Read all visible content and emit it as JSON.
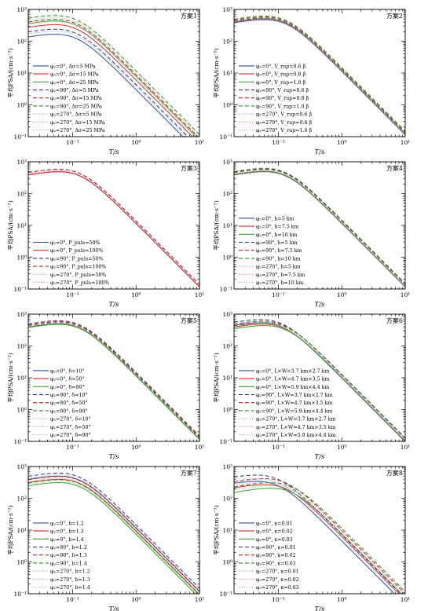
{
  "figure": {
    "ylabel": "平均PSA/(cm·s⁻²)",
    "xlabel": "T/s",
    "x_ticks": [
      "10⁻¹",
      "10⁰",
      "10¹"
    ],
    "y_ticks": [
      "10⁻¹",
      "10⁰",
      "10¹",
      "10²",
      "10³"
    ]
  },
  "colors": {
    "blue": "#2b4fa8",
    "red": "#e0272a",
    "green": "#3ea435",
    "darkblue": "#1f3a8a",
    "darkred": "#c42020",
    "darkgreen": "#2e8a27"
  },
  "chart_data": [
    {
      "type": "line",
      "scale": "loglog",
      "title": "方案1",
      "xlabel": "T/s",
      "ylabel": "平均PSA/(cm·s⁻²)",
      "xlim": [
        0.02,
        10
      ],
      "ylim": [
        0.1,
        1000
      ],
      "legend": "bottom-left",
      "series": [
        {
          "name": "φ₂=0°, Δσ=5 MPa",
          "color": "#2b4fa8",
          "dash": "solid",
          "peak": 160,
          "tp": 0.07
        },
        {
          "name": "φ₂=0°, Δσ=15 MPa",
          "color": "#e0272a",
          "dash": "solid",
          "peak": 320,
          "tp": 0.07
        },
        {
          "name": "φ₂=0°, Δσ=25 MPa",
          "color": "#3ea435",
          "dash": "solid",
          "peak": 420,
          "tp": 0.07
        },
        {
          "name": "φ₂=90°, Δσ=5 MPa",
          "color": "#1f3a8a",
          "dash": "dashed",
          "peak": 230,
          "tp": 0.07
        },
        {
          "name": "φ₂=90°, Δσ=15 MPa",
          "color": "#c42020",
          "dash": "dashed",
          "peak": 470,
          "tp": 0.07
        },
        {
          "name": "φ₂=90°, Δσ=25 MPa",
          "color": "#2e8a27",
          "dash": "dashed",
          "peak": 620,
          "tp": 0.07
        },
        {
          "name": "φ₂=270°, Δσ=5 MPa",
          "color": "#8fa3d6",
          "dash": "dotted",
          "peak": 200,
          "tp": 0.07
        },
        {
          "name": "φ₂=270°, Δσ=15 MPa",
          "color": "#f08a8a",
          "dash": "dotted",
          "peak": 400,
          "tp": 0.07
        },
        {
          "name": "φ₂=270°, Δσ=25 MPa",
          "color": "#8fce89",
          "dash": "dotted",
          "peak": 530,
          "tp": 0.07
        }
      ]
    },
    {
      "type": "line",
      "scale": "loglog",
      "title": "方案2",
      "xlabel": "T/s",
      "ylabel": "平均PSA/(cm·s⁻²)",
      "xlim": [
        0.02,
        10
      ],
      "ylim": [
        0.1,
        1000
      ],
      "legend": "bottom-left",
      "series": [
        {
          "name": "φ₂=0°, V_rup=0.6 β",
          "color": "#2b4fa8",
          "dash": "solid",
          "peak": 460,
          "tp": 0.08
        },
        {
          "name": "φ₂=0°, V_rup=0.8 β",
          "color": "#e0272a",
          "dash": "solid",
          "peak": 480,
          "tp": 0.08
        },
        {
          "name": "φ₂=0°, V_rup=1.0 β",
          "color": "#3ea435",
          "dash": "solid",
          "peak": 500,
          "tp": 0.08
        },
        {
          "name": "φ₂=90°, V_rup=0.6 β",
          "color": "#1f3a8a",
          "dash": "dashed",
          "peak": 520,
          "tp": 0.08
        },
        {
          "name": "φ₂=90°, V_rup=0.8 β",
          "color": "#c42020",
          "dash": "dashed",
          "peak": 560,
          "tp": 0.08
        },
        {
          "name": "φ₂=90°, V_rup=1.0 β",
          "color": "#2e8a27",
          "dash": "dashed",
          "peak": 600,
          "tp": 0.08
        },
        {
          "name": "φ₂=270°, V_rup=0.6 β",
          "color": "#8fa3d6",
          "dash": "dotted",
          "peak": 470,
          "tp": 0.08
        },
        {
          "name": "φ₂=270°, V_rup=0.8 β",
          "color": "#f08a8a",
          "dash": "dotted",
          "peak": 500,
          "tp": 0.08
        },
        {
          "name": "φ₂=270°, V_rup=1.0 β",
          "color": "#8fce89",
          "dash": "dotted",
          "peak": 540,
          "tp": 0.08
        }
      ]
    },
    {
      "type": "line",
      "scale": "loglog",
      "title": "方案3",
      "xlabel": "T/s",
      "ylabel": "平均PSA/(cm·s⁻²)",
      "xlim": [
        0.02,
        10
      ],
      "ylim": [
        0.1,
        1000
      ],
      "legend": "bottom-left",
      "series": [
        {
          "name": "φ₂=0°, P_puls=50%",
          "color": "#2b4fa8",
          "dash": "solid",
          "peak": 470,
          "tp": 0.08
        },
        {
          "name": "φ₂=0°, P_puls=100%",
          "color": "#e0272a",
          "dash": "solid",
          "peak": 470,
          "tp": 0.08
        },
        {
          "name": "φ₂=90°, P_puls=50%",
          "color": "#1f3a8a",
          "dash": "dashed",
          "peak": 560,
          "tp": 0.08
        },
        {
          "name": "φ₂=90°, P_puls=100%",
          "color": "#c42020",
          "dash": "dashed",
          "peak": 560,
          "tp": 0.08
        },
        {
          "name": "φ₂=270°, P_puls=50%",
          "color": "#8fa3d6",
          "dash": "dotted",
          "peak": 500,
          "tp": 0.08
        },
        {
          "name": "φ₂=270°, P_puls=100%",
          "color": "#f08a8a",
          "dash": "dotted",
          "peak": 500,
          "tp": 0.08
        }
      ]
    },
    {
      "type": "line",
      "scale": "loglog",
      "title": "方案4",
      "xlabel": "T/s",
      "ylabel": "平均PSA/(cm·s⁻²)",
      "xlim": [
        0.02,
        10
      ],
      "ylim": [
        0.1,
        1000
      ],
      "legend": "bottom-left",
      "series": [
        {
          "name": "φ₂=0°, h=5 km",
          "color": "#2b4fa8",
          "dash": "solid",
          "peak": 470,
          "tp": 0.08
        },
        {
          "name": "φ₂=0°, h=7.5 km",
          "color": "#e0272a",
          "dash": "solid",
          "peak": 480,
          "tp": 0.08
        },
        {
          "name": "φ₂=0°, h=10 km",
          "color": "#3ea435",
          "dash": "solid",
          "peak": 490,
          "tp": 0.08
        },
        {
          "name": "φ₂=90°, h=5 km",
          "color": "#1f3a8a",
          "dash": "dashed",
          "peak": 560,
          "tp": 0.08
        },
        {
          "name": "φ₂=90°, h=7.5 km",
          "color": "#c42020",
          "dash": "dashed",
          "peak": 580,
          "tp": 0.08
        },
        {
          "name": "φ₂=90°, h=10 km",
          "color": "#2e8a27",
          "dash": "dashed",
          "peak": 600,
          "tp": 0.08
        },
        {
          "name": "φ₂=270°, h=5 km",
          "color": "#8fa3d6",
          "dash": "dotted",
          "peak": 500,
          "tp": 0.08
        },
        {
          "name": "φ₂=270°, h=7.5 km",
          "color": "#f08a8a",
          "dash": "dotted",
          "peak": 510,
          "tp": 0.08
        },
        {
          "name": "φ₂=270°, h=10 km",
          "color": "#8fce89",
          "dash": "dotted",
          "peak": 520,
          "tp": 0.08
        }
      ]
    },
    {
      "type": "line",
      "scale": "loglog",
      "title": "方案5",
      "xlabel": "T/s",
      "ylabel": "平均PSA/(cm·s⁻²)",
      "xlim": [
        0.02,
        10
      ],
      "ylim": [
        0.1,
        1000
      ],
      "legend": "bottom-left",
      "series": [
        {
          "name": "φ₂=0°, δ=10°",
          "color": "#2b4fa8",
          "dash": "solid",
          "peak": 480,
          "tp": 0.08
        },
        {
          "name": "φ₂=0°, δ=50°",
          "color": "#e0272a",
          "dash": "solid",
          "peak": 470,
          "tp": 0.08
        },
        {
          "name": "φ₂=0°, δ=90°",
          "color": "#3ea435",
          "dash": "solid",
          "peak": 460,
          "tp": 0.08
        },
        {
          "name": "φ₂=90°, δ=10°",
          "color": "#1f3a8a",
          "dash": "dashed",
          "peak": 560,
          "tp": 0.08
        },
        {
          "name": "φ₂=90°, δ=50°",
          "color": "#c42020",
          "dash": "dashed",
          "peak": 600,
          "tp": 0.08
        },
        {
          "name": "φ₂=90°, δ=90°",
          "color": "#2e8a27",
          "dash": "dashed",
          "peak": 520,
          "tp": 0.08
        },
        {
          "name": "φ₂=270°, δ=10°",
          "color": "#8fa3d6",
          "dash": "dotted",
          "peak": 500,
          "tp": 0.08
        },
        {
          "name": "φ₂=270°, δ=50°",
          "color": "#f08a8a",
          "dash": "dotted",
          "peak": 520,
          "tp": 0.08
        },
        {
          "name": "φ₂=270°, δ=90°",
          "color": "#8fce89",
          "dash": "dotted",
          "peak": 490,
          "tp": 0.08
        }
      ]
    },
    {
      "type": "line",
      "scale": "loglog",
      "title": "方案6",
      "xlabel": "T/s",
      "ylabel": "平均PSA/(cm·s⁻²)",
      "xlim": [
        0.02,
        10
      ],
      "ylim": [
        0.1,
        1000
      ],
      "legend": "bottom-left",
      "series": [
        {
          "name": "φ₂=0°, L×W=3.7 km×2.7 km",
          "color": "#2b4fa8",
          "dash": "solid",
          "peak": 520,
          "tp": 0.07
        },
        {
          "name": "φ₂=0°, L×W=4.7 km×3.5 km",
          "color": "#e0272a",
          "dash": "solid",
          "peak": 470,
          "tp": 0.075
        },
        {
          "name": "φ₂=0°, L×W=5.9 km×4.4 km",
          "color": "#3ea435",
          "dash": "solid",
          "peak": 420,
          "tp": 0.08
        },
        {
          "name": "φ₂=90°, L×W=3.7 km×2.7 km",
          "color": "#1f3a8a",
          "dash": "dashed",
          "peak": 650,
          "tp": 0.07
        },
        {
          "name": "φ₂=90°, L×W=4.7 km×3.5 km",
          "color": "#c42020",
          "dash": "dashed",
          "peak": 580,
          "tp": 0.075
        },
        {
          "name": "φ₂=90°, L×W=5.9 km×4.4 km",
          "color": "#2e8a27",
          "dash": "dashed",
          "peak": 520,
          "tp": 0.08
        },
        {
          "name": "φ₂=270°, L×W=3.7 km×2.7 km",
          "color": "#8fa3d6",
          "dash": "dotted",
          "peak": 560,
          "tp": 0.07
        },
        {
          "name": "φ₂=270°, L×W=4.7 km×3.5 km",
          "color": "#f08a8a",
          "dash": "dotted",
          "peak": 500,
          "tp": 0.075
        },
        {
          "name": "φ₂=270°, L×W=5.9 km×4.4 km",
          "color": "#8fce89",
          "dash": "dotted",
          "peak": 450,
          "tp": 0.08
        }
      ]
    },
    {
      "type": "line",
      "scale": "loglog",
      "title": "方案7",
      "xlabel": "T/s",
      "ylabel": "平均PSA/(cm·s⁻²)",
      "xlim": [
        0.02,
        10
      ],
      "ylim": [
        0.1,
        1000
      ],
      "legend": "bottom-left",
      "series": [
        {
          "name": "φ₂=0°, b=1.2",
          "color": "#2b4fa8",
          "dash": "solid",
          "peak": 480,
          "tp": 0.08
        },
        {
          "name": "φ₂=0°, b=1.3",
          "color": "#e0272a",
          "dash": "solid",
          "peak": 380,
          "tp": 0.08
        },
        {
          "name": "φ₂=0°, b=1.4",
          "color": "#3ea435",
          "dash": "solid",
          "peak": 300,
          "tp": 0.08
        },
        {
          "name": "φ₂=90°, b=1.2",
          "color": "#1f3a8a",
          "dash": "dashed",
          "peak": 600,
          "tp": 0.08
        },
        {
          "name": "φ₂=90°, b=1.3",
          "color": "#c42020",
          "dash": "dashed",
          "peak": 470,
          "tp": 0.08
        },
        {
          "name": "φ₂=90°, b=1.4",
          "color": "#2e8a27",
          "dash": "dashed",
          "peak": 370,
          "tp": 0.08
        },
        {
          "name": "φ₂=270°, b=1.2",
          "color": "#8fa3d6",
          "dash": "dotted",
          "peak": 520,
          "tp": 0.08
        },
        {
          "name": "φ₂=270°, b=1.3",
          "color": "#f08a8a",
          "dash": "dotted",
          "peak": 410,
          "tp": 0.08
        },
        {
          "name": "φ₂=270°, b=1.4",
          "color": "#8fce89",
          "dash": "dotted",
          "peak": 330,
          "tp": 0.08
        }
      ]
    },
    {
      "type": "line",
      "scale": "loglog",
      "title": "方案8",
      "xlabel": "T/s",
      "ylabel": "平均PSA/(cm·s⁻²)",
      "xlim": [
        0.02,
        10
      ],
      "ylim": [
        0.1,
        1000
      ],
      "legend": "bottom-left",
      "series": [
        {
          "name": "φ₂=0°, κ=0.01",
          "color": "#2b4fa8",
          "dash": "solid",
          "peak": 330,
          "tp": 0.06
        },
        {
          "name": "φ₂=0°, κ=0.02",
          "color": "#e0272a",
          "dash": "solid",
          "peak": 260,
          "tp": 0.08
        },
        {
          "name": "φ₂=0°, κ=0.03",
          "color": "#3ea435",
          "dash": "solid",
          "peak": 200,
          "tp": 0.1
        },
        {
          "name": "φ₂=90°, κ=0.01",
          "color": "#1f3a8a",
          "dash": "dashed",
          "peak": 520,
          "tp": 0.06
        },
        {
          "name": "φ₂=90°, κ=0.02",
          "color": "#c42020",
          "dash": "dashed",
          "peak": 400,
          "tp": 0.08
        },
        {
          "name": "φ₂=90°, κ=0.03",
          "color": "#2e8a27",
          "dash": "dashed",
          "peak": 300,
          "tp": 0.1
        },
        {
          "name": "φ₂=270°, κ=0.01",
          "color": "#8fa3d6",
          "dash": "dotted",
          "peak": 400,
          "tp": 0.06
        },
        {
          "name": "φ₂=270°, κ=0.02",
          "color": "#f08a8a",
          "dash": "dotted",
          "peak": 310,
          "tp": 0.08
        },
        {
          "name": "φ₂=270°, κ=0.03",
          "color": "#8fce89",
          "dash": "dotted",
          "peak": 240,
          "tp": 0.1
        }
      ]
    }
  ]
}
